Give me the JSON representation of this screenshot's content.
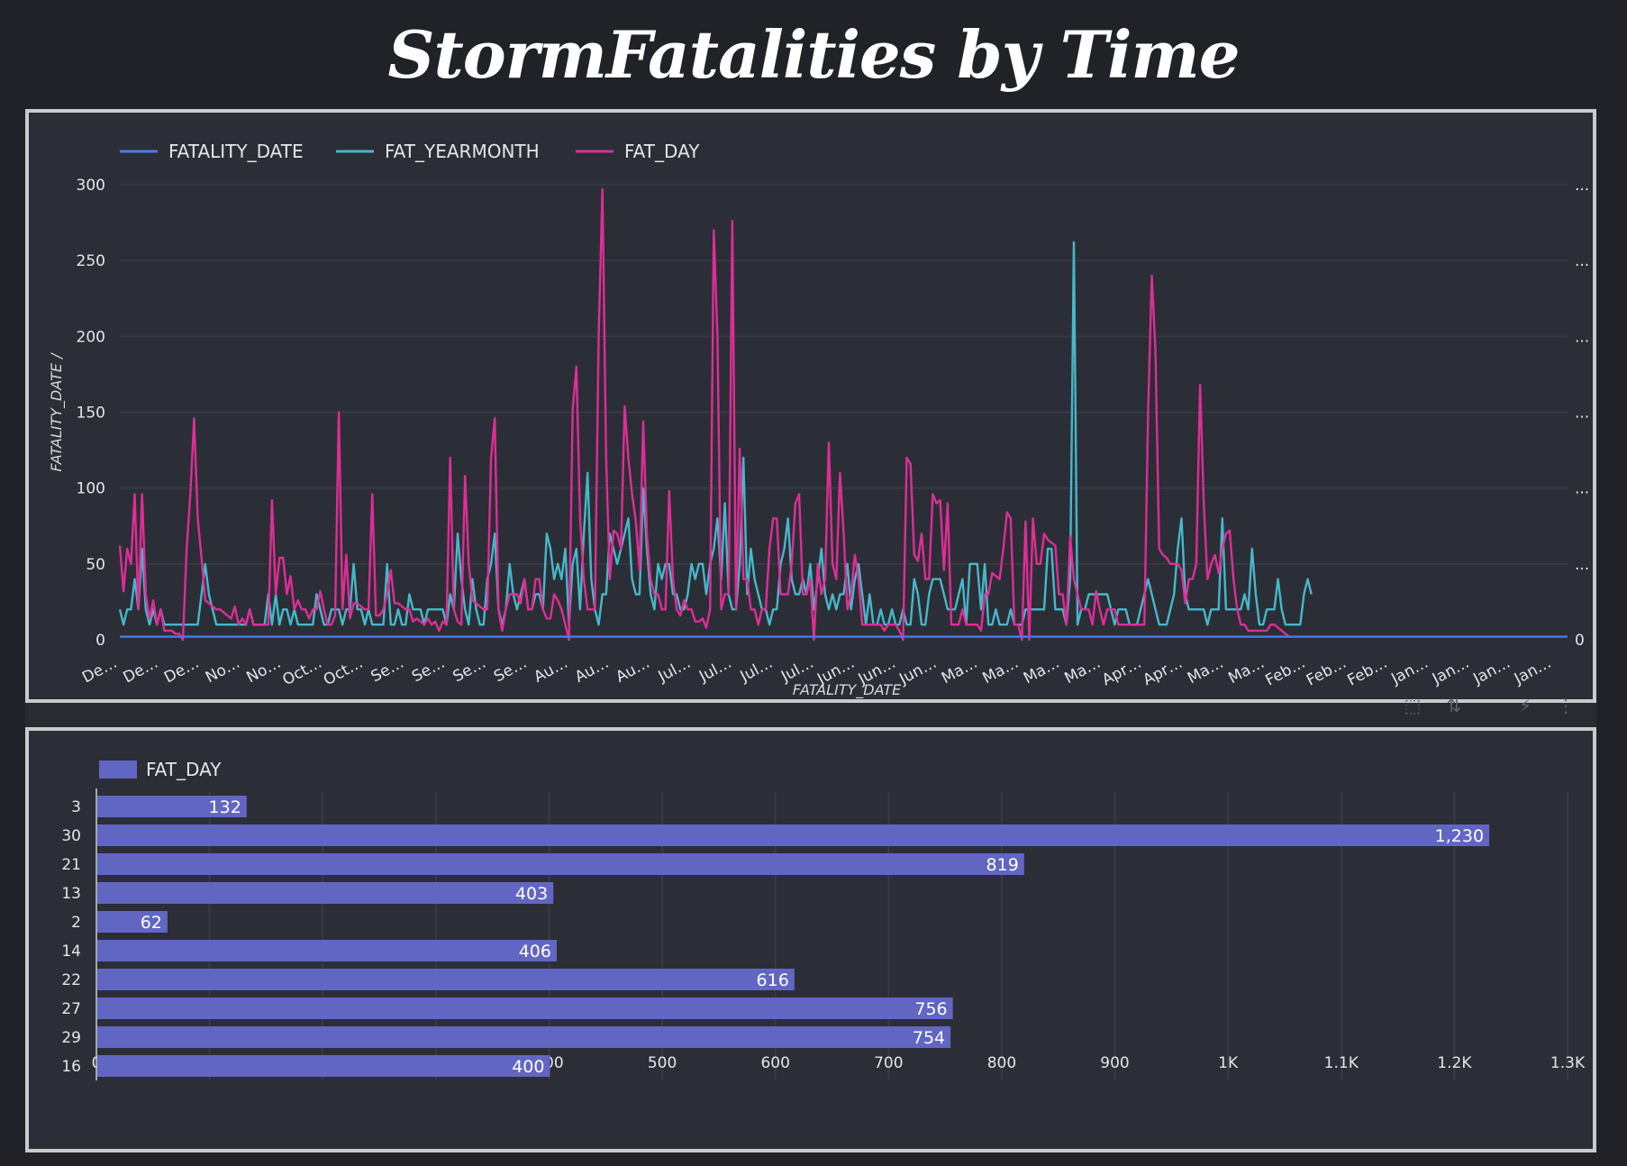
{
  "page": {
    "title": "StormFatalities by Time"
  },
  "colors": {
    "background": "#202227",
    "panel": "#2b2e37",
    "fatality_date": "#4a7be8",
    "fat_yearmonth": "#47b7c8",
    "fat_day": "#e02d96",
    "bar": "#6266c3"
  },
  "toolbar": {
    "icons": [
      "select-area-icon",
      "sort-icon",
      "lightning-icon",
      "more-vert-icon"
    ]
  },
  "chart_data": [
    {
      "type": "line",
      "xlabel": "FATALITY_DATE",
      "ylabel": "FATALITY_DATE /",
      "ylim": [
        0,
        300
      ],
      "yticks": [
        0,
        50,
        100,
        150,
        200,
        250,
        300
      ],
      "right_yticks": [
        "0",
        "...",
        "...",
        "...",
        "...",
        "...",
        "..."
      ],
      "grid": true,
      "legend_position": "top-left",
      "x_tick_labels": [
        "De…",
        "De…",
        "De…",
        "No…",
        "No…",
        "Oct…",
        "Oct…",
        "Se…",
        "Se…",
        "Se…",
        "Se…",
        "Au…",
        "Au…",
        "Au…",
        "Jul…",
        "Jul…",
        "Jul…",
        "Jul…",
        "Jun…",
        "Jun…",
        "Jun…",
        "Ma…",
        "Ma…",
        "Ma…",
        "Ma…",
        "Apr…",
        "Apr…",
        "Ma…",
        "Ma…",
        "Feb…",
        "Feb…",
        "Feb…",
        "Jan…",
        "Jan…",
        "Jan…",
        "Jan…"
      ],
      "series": [
        {
          "name": "FATALITY_DATE",
          "values": [
            2,
            2,
            2,
            2,
            2,
            2,
            2,
            2,
            2,
            2,
            2,
            2,
            2,
            2,
            2,
            2,
            2,
            2,
            2,
            2,
            2,
            2,
            2,
            2,
            2,
            2,
            2,
            2,
            2,
            2,
            2,
            2,
            2,
            2,
            2,
            2,
            2,
            2,
            2,
            2,
            2,
            2,
            2,
            2,
            2,
            2,
            2,
            2,
            2,
            2,
            2,
            2,
            2,
            2,
            2,
            2,
            2,
            2,
            2,
            2,
            2,
            2,
            2,
            2,
            2,
            2,
            2,
            2,
            2,
            2,
            2,
            2,
            2,
            2,
            2,
            2,
            2,
            2,
            2,
            2,
            2,
            2,
            2,
            2,
            2,
            2,
            2,
            2,
            2,
            2,
            2,
            2,
            2,
            2,
            2,
            2,
            2,
            2,
            2,
            2,
            2,
            2,
            2,
            2,
            2,
            2,
            2,
            2,
            2,
            2,
            2,
            2,
            2,
            2,
            2,
            2,
            2,
            2,
            2,
            2,
            2,
            2,
            2,
            2,
            2,
            2,
            2,
            2,
            2,
            2,
            2,
            2,
            2,
            2,
            2,
            2,
            2,
            2,
            2,
            2,
            2,
            2,
            2,
            2,
            2,
            2,
            2,
            2,
            2,
            2,
            2,
            2,
            2,
            2,
            2,
            2,
            2,
            2,
            2,
            2,
            2,
            2,
            2,
            2,
            2,
            2,
            2,
            2,
            2,
            2,
            2,
            2,
            2,
            2,
            2,
            2,
            2,
            2,
            2,
            2,
            2,
            2,
            2,
            2,
            2,
            2,
            2,
            2,
            2,
            2,
            2,
            2,
            2,
            2,
            2,
            2,
            2,
            2,
            2,
            2,
            2,
            2,
            2,
            2,
            2,
            2,
            2,
            2,
            2,
            2,
            2,
            2,
            2,
            2,
            2,
            2,
            2,
            2,
            2,
            2,
            2,
            2,
            2,
            2,
            2,
            2,
            2,
            2,
            2,
            2,
            2,
            2,
            2,
            2,
            2,
            2,
            2,
            2,
            2,
            2,
            2,
            2,
            2,
            2,
            2,
            2,
            2,
            2,
            2,
            2,
            2,
            2,
            2,
            2,
            2,
            2,
            2,
            2,
            2,
            2,
            2,
            2,
            2,
            2,
            2,
            2,
            2,
            2,
            2,
            2,
            2,
            2,
            2,
            2,
            2,
            2,
            2,
            2,
            2,
            2,
            2,
            2,
            2,
            2,
            2,
            2,
            2,
            2,
            2,
            2,
            2,
            2,
            2,
            2,
            2,
            2,
            2,
            2,
            2,
            2,
            2,
            2,
            2,
            2,
            2,
            2,
            2,
            2,
            2,
            2,
            2,
            2,
            2,
            2,
            2,
            2,
            2,
            2,
            2,
            2,
            2,
            2,
            2,
            2,
            2,
            2,
            2,
            2,
            2,
            2,
            2,
            2,
            2,
            2,
            2,
            2,
            2,
            2,
            2,
            2,
            2,
            2,
            2,
            2,
            2,
            2,
            2,
            2,
            2,
            2,
            2,
            2,
            2,
            2,
            2,
            2,
            2,
            2,
            2,
            2,
            2,
            2,
            2,
            2,
            2,
            2,
            2,
            2,
            2,
            2,
            2,
            2,
            2,
            2,
            2,
            2,
            2,
            2,
            2,
            2,
            2,
            2,
            2,
            2,
            2,
            2,
            2,
            2,
            2,
            2,
            2
          ]
        },
        {
          "name": "FAT_YEARMONTH",
          "values": [
            20,
            10,
            20,
            20,
            40,
            20,
            60,
            20,
            10,
            20,
            10,
            20,
            10,
            10,
            10,
            10,
            10,
            10,
            10,
            10,
            10,
            10,
            30,
            50,
            30,
            20,
            10,
            10,
            10,
            10,
            10,
            10,
            10,
            10,
            10,
            20,
            10,
            10,
            10,
            10,
            30,
            10,
            30,
            10,
            20,
            20,
            10,
            20,
            10,
            10,
            10,
            10,
            10,
            30,
            20,
            10,
            10,
            20,
            20,
            20,
            10,
            20,
            20,
            50,
            20,
            20,
            10,
            20,
            10,
            10,
            10,
            10,
            50,
            10,
            10,
            20,
            10,
            10,
            30,
            20,
            20,
            20,
            10,
            20,
            20,
            20,
            20,
            20,
            10,
            30,
            20,
            70,
            40,
            20,
            10,
            40,
            20,
            10,
            10,
            40,
            50,
            70,
            20,
            10,
            20,
            50,
            30,
            20,
            30,
            40,
            20,
            20,
            30,
            30,
            20,
            70,
            60,
            40,
            50,
            40,
            60,
            10,
            50,
            60,
            20,
            70,
            110,
            40,
            20,
            10,
            30,
            30,
            70,
            60,
            50,
            60,
            70,
            80,
            40,
            30,
            30,
            100,
            60,
            30,
            20,
            50,
            40,
            50,
            50,
            30,
            30,
            20,
            20,
            30,
            50,
            40,
            50,
            50,
            30,
            50,
            60,
            80,
            40,
            90,
            30,
            20,
            20,
            50,
            120,
            30,
            60,
            40,
            30,
            20,
            20,
            10,
            20,
            20,
            50,
            60,
            80,
            40,
            30,
            30,
            40,
            30,
            50,
            20,
            40,
            60,
            30,
            20,
            30,
            20,
            30,
            30,
            50,
            20,
            40,
            50,
            30,
            10,
            30,
            10,
            10,
            20,
            10,
            10,
            20,
            10,
            10,
            20,
            10,
            10,
            40,
            30,
            10,
            10,
            30,
            40,
            40,
            40,
            30,
            20,
            20,
            20,
            30,
            40,
            10,
            50,
            50,
            50,
            20,
            50,
            10,
            10,
            20,
            10,
            10,
            10,
            20,
            10,
            10,
            10,
            20,
            20,
            20,
            20,
            20,
            20,
            60,
            60,
            20,
            20,
            20,
            10,
            40,
            262,
            10,
            20,
            20,
            30,
            30,
            30,
            30,
            30,
            30,
            20,
            10,
            20,
            20,
            20,
            10,
            10,
            10,
            20,
            30,
            40,
            30,
            20,
            10,
            10,
            10,
            20,
            30,
            60,
            80,
            30,
            20,
            20,
            20,
            20,
            20,
            10,
            20,
            20,
            20,
            80,
            20,
            20,
            20,
            20,
            20,
            30,
            20,
            60,
            30,
            10,
            10,
            20,
            20,
            20,
            40,
            20,
            10,
            10,
            10,
            10,
            10,
            30,
            40,
            30
          ]
        },
        {
          "name": "FAT_DAY",
          "values": [
            62,
            32,
            60,
            50,
            96,
            20,
            96,
            30,
            14,
            26,
            10,
            20,
            6,
            6,
            6,
            4,
            4,
            0,
            60,
            96,
            146,
            80,
            54,
            26,
            24,
            22,
            20,
            20,
            18,
            16,
            14,
            22,
            10,
            14,
            10,
            20,
            10,
            10,
            10,
            10,
            10,
            92,
            30,
            54,
            54,
            30,
            42,
            20,
            26,
            20,
            20,
            14,
            20,
            20,
            32,
            20,
            10,
            10,
            16,
            150,
            20,
            56,
            14,
            24,
            24,
            22,
            20,
            20,
            96,
            16,
            16,
            20,
            30,
            46,
            24,
            24,
            22,
            20,
            20,
            12,
            14,
            12,
            10,
            14,
            10,
            12,
            6,
            12,
            10,
            120,
            20,
            12,
            10,
            108,
            50,
            26,
            24,
            22,
            20,
            20,
            120,
            146,
            20,
            6,
            20,
            30,
            30,
            30,
            24,
            40,
            20,
            20,
            40,
            40,
            20,
            14,
            14,
            30,
            26,
            20,
            10,
            0,
            152,
            180,
            80,
            40,
            20,
            20,
            20,
            200,
            297,
            120,
            40,
            72,
            70,
            60,
            154,
            120,
            96,
            78,
            46,
            144,
            70,
            40,
            30,
            30,
            20,
            20,
            98,
            40,
            20,
            16,
            26,
            20,
            20,
            12,
            12,
            14,
            8,
            20,
            270,
            200,
            20,
            30,
            30,
            276,
            20,
            126,
            40,
            40,
            20,
            20,
            10,
            20,
            20,
            60,
            80,
            80,
            30,
            30,
            30,
            50,
            90,
            96,
            30,
            30,
            40,
            0,
            50,
            30,
            40,
            130,
            50,
            40,
            110,
            70,
            20,
            30,
            56,
            40,
            10,
            10,
            10,
            10,
            10,
            10,
            6,
            10,
            10,
            10,
            6,
            0,
            120,
            116,
            56,
            52,
            70,
            40,
            40,
            96,
            90,
            92,
            46,
            90,
            10,
            10,
            10,
            20,
            10,
            10,
            10,
            10,
            6,
            30,
            30,
            44,
            42,
            40,
            60,
            84,
            80,
            10,
            10,
            0,
            78,
            0,
            80,
            50,
            50,
            70,
            66,
            64,
            62,
            30,
            30,
            10,
            68,
            40,
            30,
            20,
            20,
            20,
            10,
            32,
            20,
            10,
            20,
            20,
            20,
            10,
            10,
            10,
            10,
            10,
            10,
            10,
            10,
            150,
            240,
            190,
            60,
            56,
            54,
            50,
            50,
            50,
            46,
            24,
            40,
            40,
            50,
            168,
            90,
            40,
            50,
            56,
            44,
            60,
            70,
            72,
            40,
            20,
            10,
            10,
            6,
            6,
            6,
            6,
            6,
            6,
            10,
            10,
            8,
            6,
            4,
            2
          ]
        }
      ]
    },
    {
      "type": "bar",
      "orientation": "horizontal",
      "legend_position": "top-left",
      "grid": true,
      "xlim": [
        0,
        1300
      ],
      "xticks": [
        "0",
        "100",
        "200",
        "300",
        "400",
        "500",
        "600",
        "700",
        "800",
        "900",
        "1K",
        "1.1K",
        "1.2K",
        "1.3K"
      ],
      "categories": [
        "3",
        "30",
        "21",
        "13",
        "2",
        "14",
        "22",
        "27",
        "29",
        "16"
      ],
      "series": [
        {
          "name": "FAT_DAY",
          "values": [
            132,
            1230,
            819,
            403,
            62,
            406,
            616,
            756,
            754,
            400
          ],
          "labels": [
            "132",
            "1,230",
            "819",
            "403",
            "62",
            "406",
            "616",
            "756",
            "754",
            "400"
          ]
        }
      ]
    }
  ]
}
